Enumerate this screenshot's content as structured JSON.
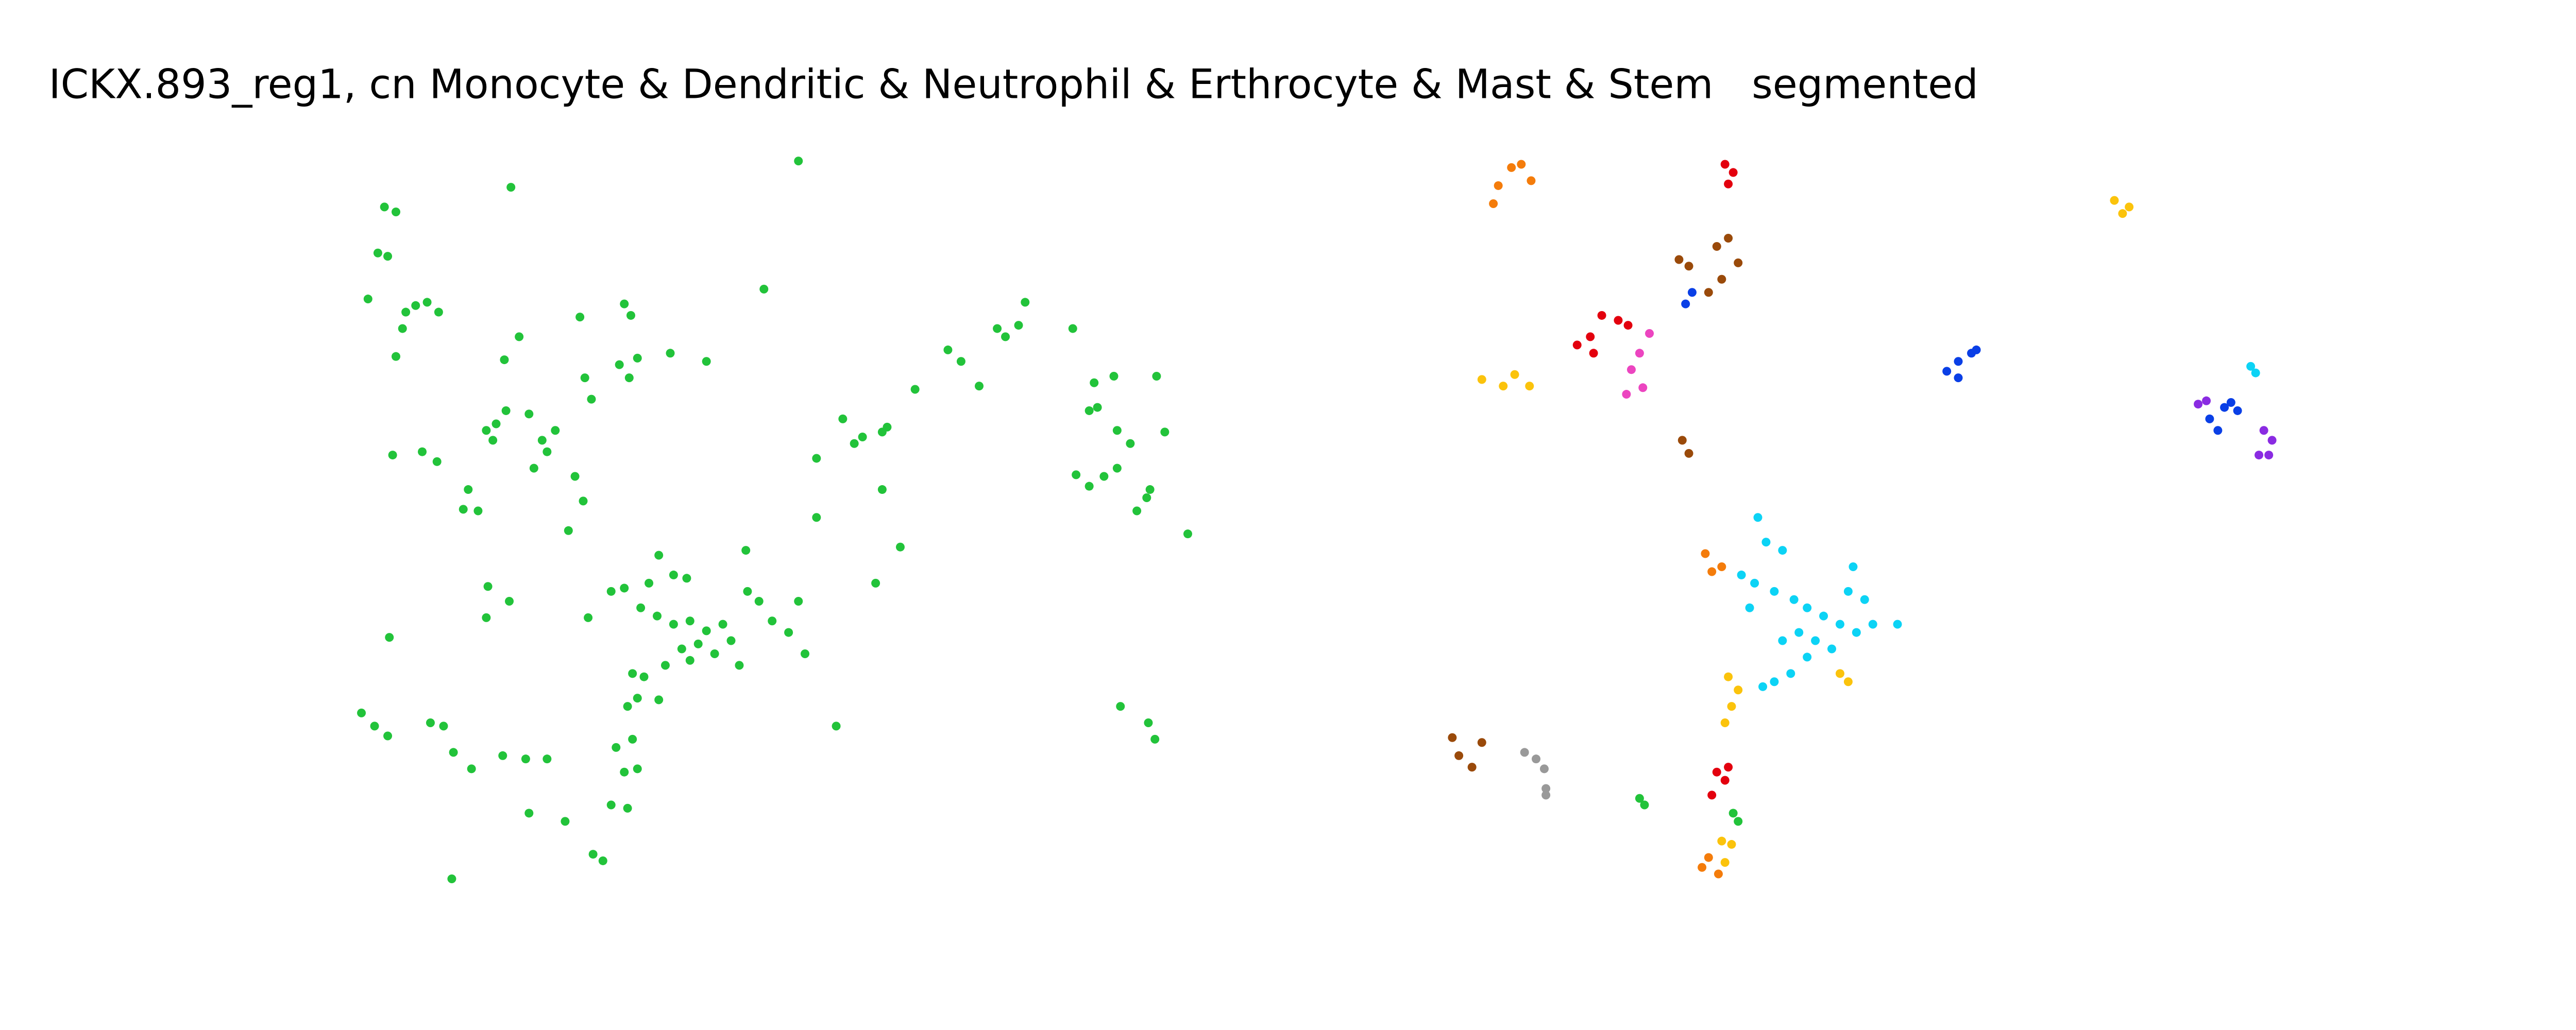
{
  "chart_data": [
    {
      "type": "scatter",
      "title": "ICKX.893_reg1, cn Monocyte & Dendritic & Neutrophil & Erthrocyte & Mast & Stem",
      "xlim": [
        0,
        784
      ],
      "ylim": [
        627,
        0
      ],
      "series": [
        {
          "color": "#22c33a",
          "x": [
            234,
            241,
            230,
            236,
            224,
            247,
            253,
            260,
            267,
            245,
            241,
            311,
            486,
            307,
            316,
            296,
            302,
            308,
            300,
            322,
            330,
            325,
            338,
            333,
            353,
            356,
            360,
            377,
            383,
            388,
            380,
            384,
            408,
            430,
            465,
            239,
            257,
            266,
            285,
            282,
            291,
            346,
            355,
            350,
            401,
            410,
            395,
            418,
            372,
            380,
            390,
            400,
            410,
            420,
            430,
            440,
            415,
            425,
            435,
            445,
            455,
            462,
            470,
            480,
            490,
            454,
            358,
            486,
            297,
            296,
            310,
            237,
            385,
            392,
            388,
            405,
            420,
            450,
            382,
            401,
            375,
            385,
            380,
            388,
            372,
            382,
            361,
            367,
            333,
            320,
            306,
            287,
            322,
            344,
            220,
            228,
            236,
            262,
            270,
            276,
            275,
            509,
            497,
            513,
            520,
            525,
            537,
            540,
            537,
            497,
            548,
            533,
            557,
            577,
            585,
            596,
            607,
            612,
            620,
            624,
            653,
            666,
            678,
            704,
            663,
            668,
            680,
            688,
            709,
            655,
            663,
            672,
            680,
            700,
            698,
            692,
            723,
            682,
            699,
            703
          ],
          "values": [
            126,
            129,
            154,
            156,
            182,
            190,
            186,
            184,
            190,
            200,
            217,
            114,
            98,
            219,
            205,
            262,
            258,
            250,
            268,
            252,
            268,
            285,
            262,
            275,
            193,
            230,
            243,
            222,
            230,
            218,
            185,
            192,
            215,
            220,
            176,
            277,
            275,
            281,
            298,
            310,
            311,
            323,
            305,
            290,
            338,
            350,
            355,
            352,
            360,
            358,
            370,
            375,
            380,
            378,
            384,
            380,
            395,
            392,
            398,
            390,
            360,
            366,
            378,
            385,
            398,
            335,
            376,
            366,
            357,
            376,
            366,
            388,
            410,
            412,
            425,
            405,
            402,
            405,
            430,
            426,
            455,
            450,
            470,
            468,
            490,
            492,
            520,
            524,
            462,
            462,
            460,
            468,
            495,
            500,
            434,
            442,
            448,
            440,
            442,
            458,
            535,
            442,
            279,
            255,
            270,
            266,
            263,
            260,
            298,
            315,
            333,
            355,
            237,
            213,
            220,
            235,
            200,
            205,
            198,
            184,
            200,
            233,
            229,
            229,
            250,
            248,
            262,
            270,
            263,
            289,
            296,
            290,
            285,
            298,
            303,
            311,
            325,
            430,
            440,
            450
          ]
        }
      ]
    },
    {
      "type": "scatter",
      "title": "segmented",
      "xlim": [
        784,
        1568
      ],
      "ylim": [
        627,
        0
      ],
      "series": [
        {
          "color": "#f47c0b",
          "x": [
            920,
            926,
            932,
            912,
            909,
            1038,
            1042,
            1048,
            1040,
            1046,
            1036
          ],
          "values": [
            102,
            100,
            110,
            113,
            124,
            337,
            348,
            345,
            522,
            532,
            528
          ]
        },
        {
          "color": "#e3000e",
          "x": [
            1050,
            1055,
            1052,
            960,
            968,
            975,
            985,
            991,
            970,
            1045,
            1050,
            1042,
            1052
          ],
          "values": [
            100,
            105,
            112,
            210,
            205,
            192,
            195,
            198,
            215,
            470,
            475,
            484,
            467
          ]
        },
        {
          "color": "#9a4a0a",
          "x": [
            1022,
            1028,
            1045,
            1052,
            1058,
            1048,
            1040,
            1024,
            1028,
            884,
            888,
            896,
            902
          ],
          "values": [
            158,
            162,
            150,
            145,
            160,
            170,
            178,
            268,
            276,
            449,
            460,
            467,
            452
          ]
        },
        {
          "color": "#0a3fe6",
          "x": [
            1026,
            1030,
            1185,
            1192,
            1200,
            1203,
            1192,
            1345,
            1350,
            1358,
            1362,
            1354
          ],
          "values": [
            185,
            178,
            226,
            220,
            215,
            213,
            230,
            255,
            262,
            245,
            250,
            248
          ]
        },
        {
          "color": "#ec45c0",
          "x": [
            993,
            998,
            1004,
            990,
            1000
          ],
          "values": [
            225,
            215,
            203,
            240,
            236
          ]
        },
        {
          "color": "#fbc30c",
          "x": [
            902,
            915,
            922,
            931,
            1287,
            1292,
            1296,
            1052,
            1058,
            1054,
            1050,
            1120,
            1125,
            1048,
            1054,
            1050
          ],
          "values": [
            231,
            235,
            228,
            235,
            122,
            130,
            126,
            412,
            420,
            430,
            440,
            410,
            415,
            512,
            514,
            525
          ]
        },
        {
          "color": "#0cd3f5",
          "x": [
            1370,
            1373,
            1070,
            1075,
            1085,
            1060,
            1068,
            1080,
            1092,
            1100,
            1110,
            1120,
            1130,
            1140,
            1155,
            1128,
            1125,
            1115,
            1100,
            1090,
            1080,
            1073,
            1095,
            1105,
            1085,
            1065,
            1135
          ],
          "values": [
            223,
            227,
            315,
            330,
            335,
            350,
            355,
            360,
            365,
            370,
            375,
            380,
            385,
            380,
            380,
            345,
            360,
            395,
            400,
            410,
            415,
            418,
            385,
            390,
            390,
            370,
            365
          ]
        },
        {
          "color": "#8a2be2",
          "x": [
            1338,
            1343,
            1378,
            1383,
            1375,
            1381
          ],
          "values": [
            246,
            244,
            262,
            268,
            277,
            277
          ]
        },
        {
          "color": "#999999",
          "x": [
            928,
            935,
            940,
            941,
            941
          ],
          "values": [
            458,
            462,
            468,
            480,
            484
          ]
        },
        {
          "color": "#22c33a",
          "x": [
            998,
            1001,
            1055,
            1058
          ],
          "values": [
            486,
            490,
            495,
            500
          ]
        }
      ]
    }
  ]
}
